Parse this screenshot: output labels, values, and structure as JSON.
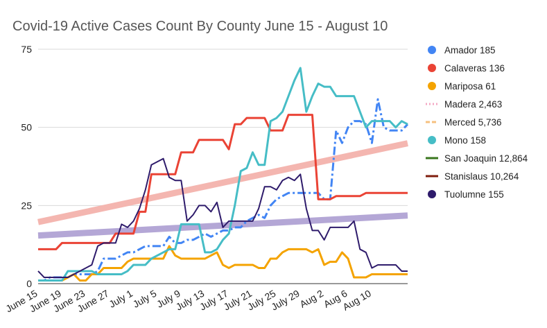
{
  "chart_data": {
    "type": "line",
    "title": "Covid-19 Active Cases Count By County June 15 - August 10",
    "xlabel": "",
    "ylabel": "",
    "ylim": [
      0,
      75
    ],
    "yticks": [
      0,
      25,
      50,
      75
    ],
    "grid": true,
    "legend_position": "right",
    "x_start_date": "June 15",
    "x_end_date": "Aug 10",
    "xtick_labels": [
      "June 15",
      "June 19",
      "June 23",
      "June 27",
      "July 1",
      "July 5",
      "July 9",
      "July 13",
      "July 17",
      "July 21",
      "July 25",
      "July 29",
      "Aug 2",
      "Aug 6",
      "Aug 10"
    ],
    "series": [
      {
        "name": "Amador 185",
        "color": "#4285f4",
        "dash": "dashdot",
        "marker": "circle",
        "values": [
          1,
          1,
          2,
          2,
          2,
          2,
          3,
          3,
          3,
          3,
          4,
          8,
          8,
          8,
          9,
          10,
          10,
          11,
          12,
          12,
          12,
          12,
          15,
          13,
          13,
          14,
          14,
          15,
          16,
          15,
          16,
          17,
          17,
          18,
          18,
          20,
          21,
          22,
          21,
          25,
          27,
          28,
          29,
          29,
          29,
          29,
          29,
          29,
          27,
          27,
          49,
          45,
          50,
          52,
          52,
          51,
          45,
          59,
          50,
          49,
          49,
          49,
          51
        ]
      },
      {
        "name": "Calaveras 136",
        "color": "#ea4335",
        "dash": "solid",
        "marker": "circle",
        "values": [
          11,
          11,
          11,
          11,
          13,
          13,
          13,
          13,
          13,
          13,
          13,
          13,
          13,
          16,
          16,
          16,
          16,
          23,
          23,
          35,
          35,
          35,
          35,
          35,
          42,
          42,
          42,
          46,
          46,
          46,
          46,
          46,
          43,
          51,
          51,
          53,
          53,
          53,
          53,
          49,
          49,
          49,
          54,
          54,
          54,
          54,
          54,
          27,
          27,
          27,
          28,
          28,
          28,
          28,
          28,
          29,
          29,
          29,
          29,
          29,
          29,
          29,
          29
        ]
      },
      {
        "name": "Mariposa 61",
        "color": "#f4a300",
        "dash": "solid",
        "marker": "circle",
        "values": [
          1,
          1,
          1,
          1,
          1,
          2,
          3,
          1,
          1,
          3,
          3,
          5,
          5,
          5,
          5,
          7,
          8,
          8,
          8,
          8,
          8,
          8,
          12,
          9,
          8,
          8,
          8,
          8,
          8,
          9,
          10,
          6,
          5,
          6,
          6,
          6,
          6,
          5,
          5,
          8,
          8,
          10,
          11,
          11,
          11,
          11,
          10,
          11,
          6,
          7,
          7,
          10,
          8,
          2,
          2,
          2,
          3,
          3,
          3,
          3,
          3,
          3,
          3
        ]
      },
      {
        "name": "Madera 2,463",
        "color": "#f4a7c3",
        "dash": "dotted",
        "marker": "none",
        "values": []
      },
      {
        "name": "Merced 5,736",
        "color": "#f6c07f",
        "dash": "dashed",
        "marker": "none",
        "values": []
      },
      {
        "name": "Mono 158",
        "color": "#46bdc6",
        "dash": "solid",
        "marker": "circle",
        "values": [
          1,
          1,
          1,
          1,
          1,
          4,
          4,
          4,
          4,
          4,
          3,
          3,
          3,
          3,
          3,
          4,
          6,
          6,
          6,
          8,
          9,
          10,
          11,
          11,
          19,
          19,
          19,
          19,
          10,
          10,
          11,
          14,
          16,
          25,
          36,
          37,
          42,
          38,
          38,
          52,
          53,
          55,
          60,
          65,
          69,
          55,
          60,
          64,
          63,
          63,
          60,
          60,
          60,
          60,
          55,
          50,
          52,
          52,
          52,
          52,
          50,
          52,
          51
        ]
      },
      {
        "name": "San Joaquin 12,864",
        "color": "#38761d",
        "dash": "solid",
        "marker": "none",
        "values": []
      },
      {
        "name": "Stanislaus 10,264",
        "color": "#7f1d0d",
        "dash": "solid",
        "marker": "none",
        "values": []
      },
      {
        "name": "Tuolumne 155",
        "color": "#2e1b6b",
        "dash": "solid",
        "marker": "circle",
        "values": [
          4,
          2,
          2,
          2,
          2,
          2,
          3,
          4,
          5,
          6,
          12,
          13,
          13,
          13,
          19,
          18,
          20,
          24,
          30,
          38,
          39,
          40,
          34,
          33,
          33,
          20,
          22,
          25,
          25,
          23,
          26,
          18,
          20,
          20,
          20,
          20,
          20,
          24,
          31,
          31,
          30,
          33,
          34,
          33,
          35,
          24,
          17,
          17,
          14,
          18,
          18,
          18,
          18,
          20,
          11,
          10,
          5,
          6,
          6,
          6,
          6,
          4,
          4
        ]
      }
    ],
    "trendlines": [
      {
        "color": "#f4b6b0",
        "values": [
          19.7,
          44.9
        ]
      },
      {
        "color": "#b4a7d6",
        "values": [
          15.4,
          21.8
        ]
      }
    ]
  }
}
